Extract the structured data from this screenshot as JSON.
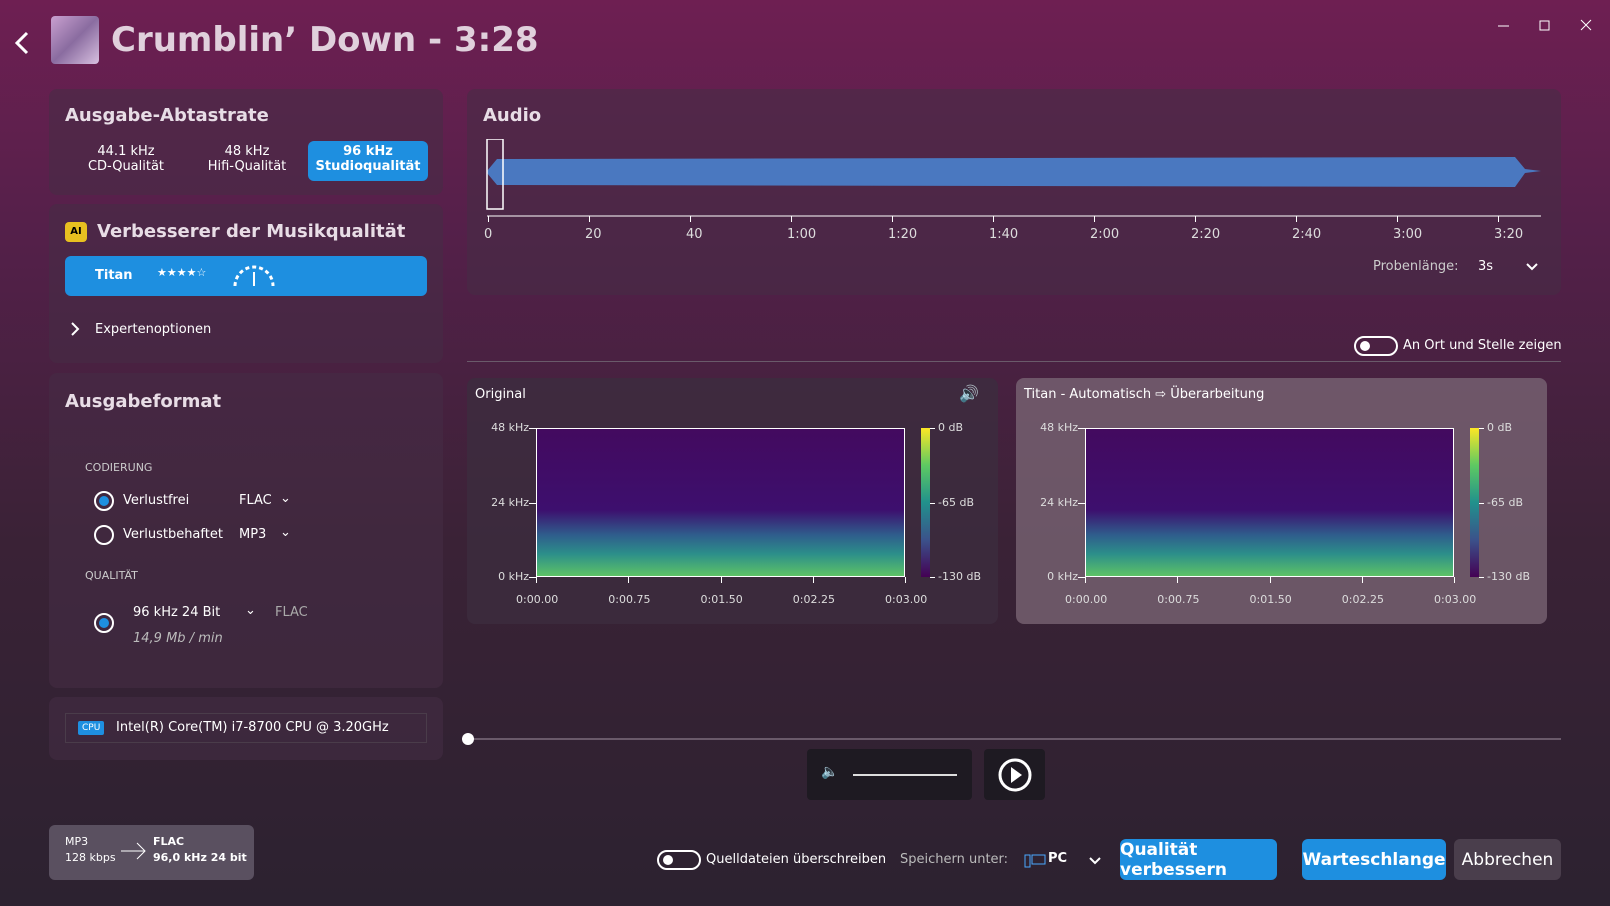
{
  "header": {
    "title": "Crumblin’ Down - 3:28"
  },
  "sample_rate": {
    "title": "Ausgabe-Abtastrate",
    "options": [
      {
        "rate": "44.1 kHz",
        "label": "CD-Qualität"
      },
      {
        "rate": "48 kHz",
        "label": "Hifi-Qualität"
      },
      {
        "rate": "96 kHz",
        "label": "Studioqualität"
      }
    ]
  },
  "enhancer": {
    "badge": "AI",
    "title": "Verbesserer der Musikqualität",
    "model": "Titan",
    "expert": "Expertenoptionen"
  },
  "format": {
    "title": "Ausgabeformat",
    "coding_label": "CODIERUNG",
    "lossless": "Verlustfrei",
    "lossless_format": "FLAC",
    "lossy": "Verlustbehaftet",
    "lossy_format": "MP3",
    "quality_label": "QUALITÄT",
    "quality": "96 kHz 24 Bit",
    "quality_format": "FLAC",
    "size": "14,9 Mb / min"
  },
  "cpu": {
    "badge": "CPU",
    "name": "Intel(R) Core(TM) i7-8700 CPU @ 3.20GHz"
  },
  "conversion": {
    "from": "MP3",
    "from_detail": "128 kbps",
    "to": "FLAC",
    "to_detail": "96,0 kHz 24 bit"
  },
  "audio": {
    "title": "Audio",
    "ticks": [
      "0",
      "20",
      "40",
      "1:00",
      "1:20",
      "1:40",
      "2:00",
      "2:20",
      "2:40",
      "3:00",
      "3:20"
    ],
    "sample_length_label": "Probenlänge:",
    "sample_length": "3s"
  },
  "compare": {
    "toggle": "An Ort und Stelle zeigen",
    "panels": [
      {
        "title": "Original"
      },
      {
        "title": "Titan - Automatisch ⇨ Überarbeitung"
      }
    ],
    "freq_ticks": [
      "48 kHz",
      "24 kHz",
      "0 kHz"
    ],
    "db_ticks": [
      "0 dB",
      "-65 dB",
      "-130 dB"
    ],
    "time_ticks": [
      "0:00.00",
      "0:00.75",
      "0:01.50",
      "0:02.25",
      "0:03.00"
    ]
  },
  "footer": {
    "overwrite": "Quelldateien überschreiben",
    "save_label": "Speichern unter:",
    "save_target": "PC",
    "enhance": "Qualität verbessern",
    "queue": "Warteschlange",
    "cancel": "Abbrechen"
  }
}
